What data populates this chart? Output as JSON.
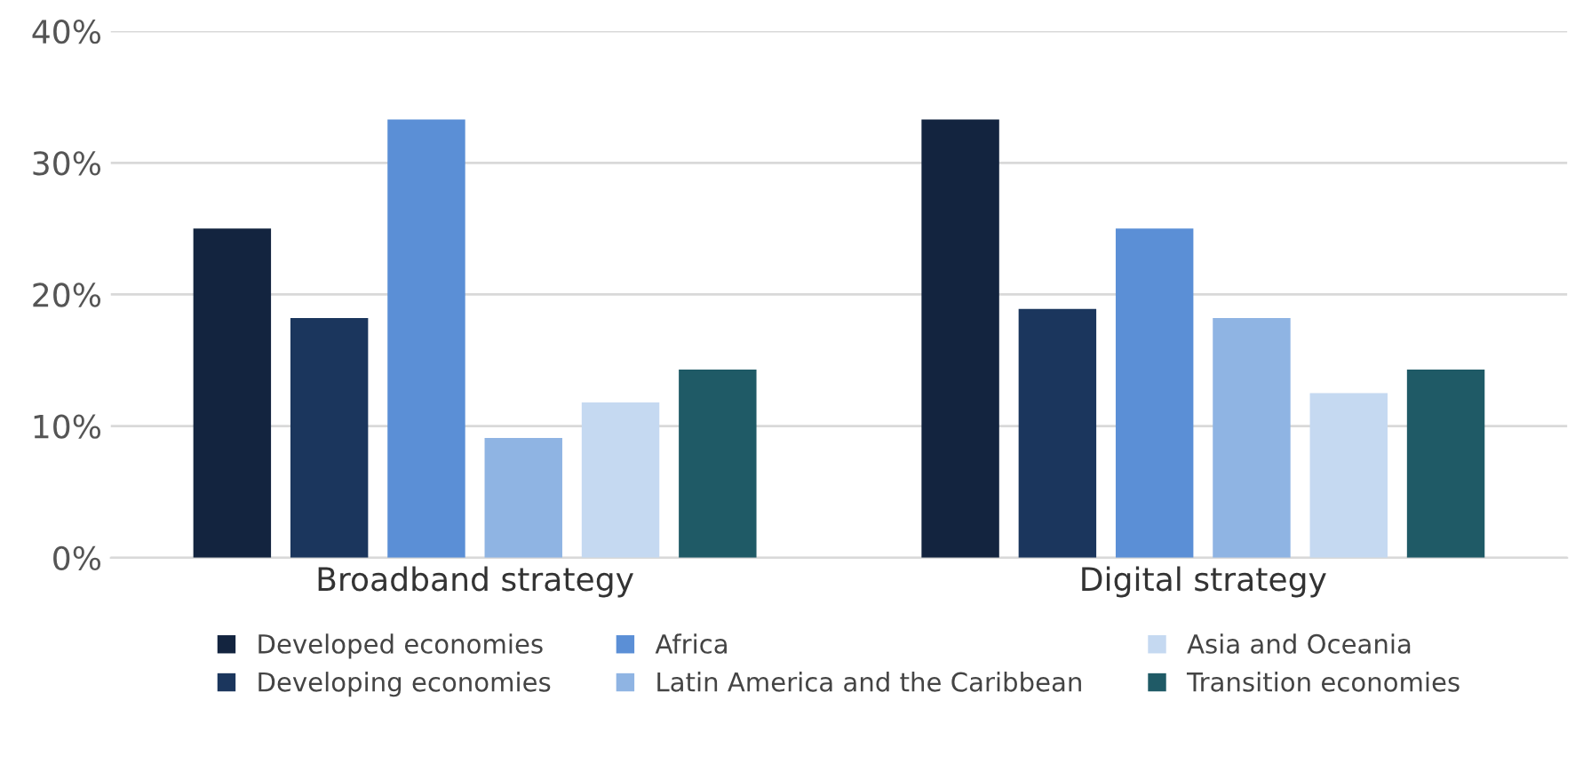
{
  "chart_data": {
    "type": "bar",
    "categories": [
      "Broadband strategy",
      "Digital strategy"
    ],
    "series": [
      {
        "name": "Developed economies",
        "color": "#13243f",
        "values": [
          25.0,
          33.3
        ]
      },
      {
        "name": "Developing economies",
        "color": "#1b365d",
        "values": [
          18.2,
          18.9
        ]
      },
      {
        "name": "Africa",
        "color": "#5b8fd6",
        "values": [
          33.3,
          25.0
        ]
      },
      {
        "name": "Latin America and the Caribbean",
        "color": "#8fb4e3",
        "values": [
          9.1,
          18.2
        ]
      },
      {
        "name": "Asia and Oceania",
        "color": "#c5d9f1",
        "values": [
          11.8,
          12.5
        ]
      },
      {
        "name": "Transition economies",
        "color": "#1f5a66",
        "values": [
          14.3,
          14.3
        ]
      }
    ],
    "ylim": [
      0,
      40
    ],
    "yticks": [
      {
        "value": 0,
        "label": "0%"
      },
      {
        "value": 10,
        "label": "10%"
      },
      {
        "value": 20,
        "label": "20%"
      },
      {
        "value": 30,
        "label": "30%"
      },
      {
        "value": 40,
        "label": "40%"
      }
    ],
    "grid": "y",
    "legend": "bottom"
  }
}
